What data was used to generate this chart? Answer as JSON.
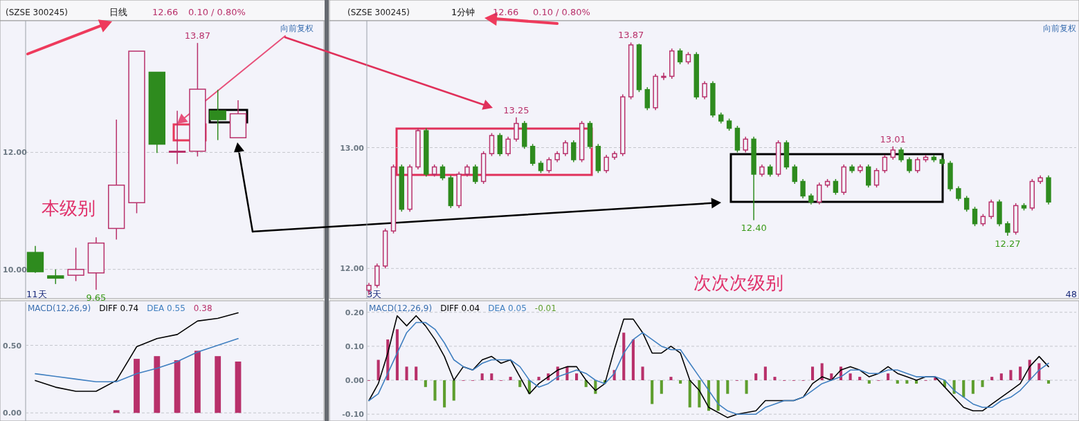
{
  "chart_data": [
    {
      "type": "candlestick",
      "title": "(SZSE 300245)",
      "subtitle": "日线",
      "categories": [
        null,
        null,
        null,
        null,
        null,
        null,
        null,
        null,
        null,
        null,
        null
      ],
      "ohlc": [
        [
          10.29,
          10.4,
          9.94,
          9.96
        ],
        [
          9.89,
          10.0,
          9.75,
          9.85
        ],
        [
          9.9,
          10.37,
          9.8,
          10.0
        ],
        [
          9.94,
          10.55,
          9.65,
          10.45
        ],
        [
          10.7,
          12.56,
          10.51,
          11.44
        ],
        [
          11.14,
          13.73,
          10.96,
          13.73
        ],
        [
          13.37,
          13.37,
          11.99,
          12.14
        ],
        [
          12.01,
          12.71,
          11.8,
          12.02
        ],
        [
          12.02,
          13.87,
          11.93,
          13.08
        ],
        [
          12.71,
          13.07,
          12.21,
          12.56
        ],
        [
          12.25,
          12.89,
          12.25,
          12.66
        ]
      ],
      "ylim": [
        9.5,
        14.25
      ],
      "yticks": [
        {
          "value": 10,
          "label": "10.00"
        },
        {
          "value": 12,
          "label": "12.00"
        }
      ],
      "grid": "y",
      "annotations": [
        "12.66",
        "0.10 / 0.80%",
        "向前复权",
        "11天",
        "本级别",
        {
          "text": "13.87",
          "y": 13.87
        },
        {
          "text": "9.65",
          "y": 9.65
        }
      ]
    },
    {
      "type": "candlestick",
      "title": "(SZSE 300245)",
      "subtitle": "1分钟",
      "categories": [
        null,
        null,
        null,
        null,
        null,
        null,
        null,
        null,
        null,
        null,
        null,
        null,
        null,
        null,
        null,
        null,
        null,
        null,
        null,
        null,
        null,
        null,
        null,
        null,
        null,
        null,
        null,
        null,
        null,
        null,
        null,
        null,
        null,
        null,
        null,
        null,
        null,
        null,
        null,
        null,
        null,
        null,
        null,
        null,
        null,
        null,
        null,
        null,
        null,
        null,
        null,
        null,
        null,
        null,
        null,
        null,
        null,
        null,
        null,
        null,
        null,
        null,
        null,
        null,
        null,
        null,
        null,
        null,
        null,
        null,
        null,
        null,
        null,
        null,
        null,
        null,
        null,
        null,
        null,
        null,
        null,
        null,
        null,
        null
      ],
      "ohlc": [
        [
          11.82,
          11.88,
          11.78,
          11.86
        ],
        [
          11.86,
          12.04,
          11.84,
          12.02
        ],
        [
          12.02,
          12.33,
          12.0,
          12.31
        ],
        [
          12.31,
          12.86,
          12.29,
          12.84
        ],
        [
          12.84,
          12.86,
          12.47,
          12.49
        ],
        [
          12.49,
          12.86,
          12.47,
          12.84
        ],
        [
          12.84,
          13.16,
          12.82,
          13.14
        ],
        [
          13.14,
          13.16,
          12.76,
          12.78
        ],
        [
          12.78,
          12.86,
          12.76,
          12.84
        ],
        [
          12.84,
          12.86,
          12.73,
          12.75
        ],
        [
          12.75,
          12.77,
          12.5,
          12.52
        ],
        [
          12.52,
          12.8,
          12.5,
          12.78
        ],
        [
          12.78,
          12.86,
          12.76,
          12.84
        ],
        [
          12.84,
          12.86,
          12.7,
          12.72
        ],
        [
          12.72,
          12.97,
          12.7,
          12.95
        ],
        [
          12.95,
          13.12,
          12.93,
          13.1
        ],
        [
          13.1,
          13.12,
          12.93,
          12.95
        ],
        [
          12.95,
          13.09,
          12.93,
          13.07
        ],
        [
          13.07,
          13.25,
          13.05,
          13.2
        ],
        [
          13.2,
          13.22,
          12.99,
          13.01
        ],
        [
          13.01,
          13.03,
          12.85,
          12.87
        ],
        [
          12.87,
          12.89,
          12.79,
          12.81
        ],
        [
          12.81,
          12.92,
          12.79,
          12.9
        ],
        [
          12.9,
          12.97,
          12.88,
          12.95
        ],
        [
          12.95,
          13.06,
          12.93,
          13.04
        ],
        [
          13.04,
          13.06,
          12.88,
          12.9
        ],
        [
          12.9,
          13.22,
          12.88,
          13.2
        ],
        [
          13.2,
          13.22,
          12.99,
          13.01
        ],
        [
          13.01,
          13.03,
          12.79,
          12.81
        ],
        [
          12.81,
          12.94,
          12.79,
          12.92
        ],
        [
          12.92,
          12.97,
          12.9,
          12.95
        ],
        [
          12.95,
          13.44,
          12.93,
          13.42
        ],
        [
          13.42,
          13.87,
          13.4,
          13.85
        ],
        [
          13.85,
          13.86,
          13.46,
          13.48
        ],
        [
          13.48,
          13.5,
          13.31,
          13.33
        ],
        [
          13.33,
          13.61,
          13.31,
          13.59
        ],
        [
          13.59,
          13.62,
          13.56,
          13.59
        ],
        [
          13.59,
          13.82,
          13.57,
          13.8
        ],
        [
          13.8,
          13.82,
          13.69,
          13.71
        ],
        [
          13.71,
          13.79,
          13.69,
          13.77
        ],
        [
          13.77,
          13.79,
          13.4,
          13.42
        ],
        [
          13.42,
          13.55,
          13.4,
          13.53
        ],
        [
          13.53,
          13.55,
          13.25,
          13.27
        ],
        [
          13.27,
          13.29,
          13.2,
          13.22
        ],
        [
          13.22,
          13.24,
          13.14,
          13.16
        ],
        [
          13.16,
          13.18,
          12.96,
          12.98
        ],
        [
          12.98,
          13.09,
          12.96,
          13.07
        ],
        [
          13.07,
          13.09,
          12.4,
          12.78
        ],
        [
          12.78,
          12.86,
          12.76,
          12.84
        ],
        [
          12.84,
          12.86,
          12.76,
          12.78
        ],
        [
          12.78,
          13.06,
          12.76,
          13.04
        ],
        [
          13.04,
          13.06,
          12.82,
          12.84
        ],
        [
          12.84,
          12.86,
          12.7,
          12.72
        ],
        [
          12.72,
          12.74,
          12.58,
          12.6
        ],
        [
          12.6,
          12.62,
          12.53,
          12.55
        ],
        [
          12.55,
          12.71,
          12.53,
          12.69
        ],
        [
          12.69,
          12.74,
          12.67,
          12.72
        ],
        [
          12.72,
          12.74,
          12.61,
          12.63
        ],
        [
          12.63,
          12.86,
          12.61,
          12.84
        ],
        [
          12.84,
          12.86,
          12.79,
          12.81
        ],
        [
          12.81,
          12.86,
          12.79,
          12.84
        ],
        [
          12.84,
          12.86,
          12.67,
          12.69
        ],
        [
          12.69,
          12.83,
          12.67,
          12.81
        ],
        [
          12.81,
          12.94,
          12.79,
          12.92
        ],
        [
          12.92,
          13.01,
          12.9,
          12.98
        ],
        [
          12.98,
          13.0,
          12.88,
          12.9
        ],
        [
          12.9,
          12.92,
          12.79,
          12.81
        ],
        [
          12.81,
          12.92,
          12.79,
          12.9
        ],
        [
          12.9,
          12.94,
          12.88,
          12.92
        ],
        [
          12.92,
          12.94,
          12.88,
          12.9
        ],
        [
          12.9,
          12.92,
          12.85,
          12.87
        ],
        [
          12.87,
          12.89,
          12.64,
          12.66
        ],
        [
          12.66,
          12.68,
          12.56,
          12.58
        ],
        [
          12.58,
          12.6,
          12.47,
          12.49
        ],
        [
          12.49,
          12.51,
          12.35,
          12.37
        ],
        [
          12.37,
          12.45,
          12.35,
          12.43
        ],
        [
          12.43,
          12.57,
          12.41,
          12.55
        ],
        [
          12.55,
          12.57,
          12.35,
          12.37
        ],
        [
          12.37,
          12.39,
          12.27,
          12.3
        ],
        [
          12.3,
          12.54,
          12.28,
          12.52
        ],
        [
          12.52,
          12.54,
          12.48,
          12.5
        ],
        [
          12.5,
          12.74,
          12.48,
          12.72
        ],
        [
          12.72,
          12.77,
          12.7,
          12.75
        ],
        [
          12.75,
          12.77,
          12.53,
          12.55
        ]
      ],
      "ylim": [
        11.75,
        14.05
      ],
      "yticks": [
        {
          "value": 12,
          "label": "12.00"
        },
        {
          "value": 13,
          "label": "13.00"
        }
      ],
      "grid": "y",
      "annotations": [
        "12.66",
        "0.10 / 0.80%",
        "向前复权",
        "3天",
        "48",
        "次次次级别",
        {
          "text": "13.87",
          "y": 13.87
        },
        {
          "text": "13.25",
          "y": 13.25
        },
        {
          "text": "12.40",
          "y": 12.4
        },
        {
          "text": "13.01",
          "y": 13.01
        },
        {
          "text": "12.27",
          "y": 12.27
        }
      ]
    },
    {
      "type": "bar",
      "title": "MACD(12,26,9)",
      "categories": [
        null,
        null,
        null,
        null,
        null,
        null,
        null,
        null,
        null,
        null,
        null
      ],
      "series": [
        {
          "name": "DIFF 0.74",
          "type": "line",
          "color": "#000000",
          "values": [
            0.24,
            0.19,
            0.16,
            0.16,
            0.24,
            0.49,
            0.55,
            0.58,
            0.68,
            0.7,
            0.74
          ]
        },
        {
          "name": "DEA 0.55",
          "type": "line",
          "color": "#3f7fc0",
          "values": [
            0.29,
            0.27,
            0.25,
            0.23,
            0.23,
            0.29,
            0.33,
            0.38,
            0.45,
            0.5,
            0.55
          ]
        },
        {
          "name": "0.38",
          "type": "bar",
          "colors": [
            null,
            null,
            null,
            null,
            "#b8306a",
            "#b8306a",
            "#b8306a",
            "#b8306a",
            "#b8306a",
            "#b8306a",
            "#b8306a"
          ],
          "values": [
            null,
            null,
            null,
            null,
            0.02,
            0.4,
            0.42,
            0.39,
            0.46,
            0.42,
            0.38
          ]
        }
      ],
      "ylim": [
        -0.06,
        0.82
      ],
      "yticks": [
        {
          "value": 0,
          "label": "0.00"
        },
        {
          "value": 0.5,
          "label": "0.50"
        }
      ],
      "grid": "y",
      "legend": "top"
    },
    {
      "type": "bar",
      "title": "MACD(12,26,9)",
      "categories": [
        null,
        null,
        null,
        null,
        null,
        null,
        null,
        null,
        null,
        null,
        null,
        null,
        null,
        null,
        null,
        null,
        null,
        null,
        null,
        null,
        null,
        null,
        null,
        null,
        null,
        null,
        null,
        null,
        null,
        null,
        null,
        null,
        null,
        null,
        null,
        null,
        null,
        null,
        null,
        null,
        null,
        null,
        null,
        null,
        null,
        null,
        null,
        null,
        null,
        null,
        null,
        null,
        null,
        null,
        null,
        null,
        null,
        null,
        null,
        null,
        null,
        null,
        null,
        null,
        null,
        null,
        null,
        null,
        null,
        null,
        null,
        null,
        null
      ],
      "series": [
        {
          "name": "DIFF 0.04",
          "type": "line",
          "color": "#000000",
          "values": [
            -0.06,
            -0.01,
            0.08,
            0.19,
            0.16,
            0.19,
            0.16,
            0.12,
            0.07,
            0.0,
            0.04,
            0.03,
            0.06,
            0.07,
            0.05,
            0.06,
            0.01,
            -0.04,
            -0.01,
            0.01,
            0.03,
            0.04,
            0.04,
            0.0,
            -0.03,
            -0.01,
            0.09,
            0.18,
            0.18,
            0.14,
            0.08,
            0.08,
            0.1,
            0.08,
            0.0,
            -0.03,
            -0.08,
            null,
            -0.11,
            -0.1,
            null,
            -0.09,
            -0.06,
            -0.06,
            -0.06,
            -0.06,
            -0.05,
            -0.01,
            0.01,
            0.0,
            0.03,
            0.04,
            0.03,
            0.01,
            0.02,
            0.04,
            0.02,
            0.01,
            0.0,
            0.01,
            0.01,
            -0.02,
            -0.05,
            -0.08,
            -0.09,
            -0.09,
            -0.07,
            -0.05,
            -0.03,
            -0.01,
            0.04,
            0.07,
            0.04
          ]
        },
        {
          "name": "DEA 0.05",
          "type": "line",
          "color": "#3f7fc0",
          "values": [
            -0.06,
            -0.04,
            0.02,
            0.08,
            0.14,
            0.17,
            0.17,
            0.15,
            0.11,
            0.06,
            0.04,
            0.03,
            0.05,
            0.06,
            0.06,
            0.06,
            0.04,
            0.0,
            -0.02,
            -0.01,
            0.01,
            0.02,
            0.03,
            0.02,
            0.0,
            -0.01,
            0.02,
            0.08,
            0.12,
            0.14,
            0.12,
            0.1,
            0.09,
            0.09,
            0.05,
            0.01,
            -0.03,
            -0.07,
            -0.09,
            -0.1,
            -0.1,
            -0.1,
            -0.08,
            -0.07,
            -0.06,
            -0.06,
            -0.05,
            -0.03,
            -0.01,
            0.0,
            0.01,
            0.03,
            0.03,
            0.02,
            0.02,
            0.03,
            0.03,
            0.02,
            0.01,
            0.01,
            0.01,
            0.0,
            -0.03,
            -0.05,
            -0.07,
            -0.08,
            -0.08,
            -0.06,
            -0.05,
            -0.03,
            0.0,
            0.03,
            0.05
          ]
        },
        {
          "name": "-0.01",
          "type": "bar",
          "colors": [
            "#b8306a",
            "#b8306a",
            "#b8306a",
            "#b8306a",
            "#b8306a",
            "#b8306a",
            "#5e9e2e",
            "#5e9e2e",
            "#5e9e2e",
            "#5e9e2e",
            "#b8306a",
            "#b8306a",
            "#b8306a",
            "#b8306a",
            "#b8306a",
            "#b8306a",
            "#5e9e2e",
            "#5e9e2e",
            "#b8306a",
            "#b8306a",
            "#b8306a",
            "#b8306a",
            "#b8306a",
            "#5e9e2e",
            "#5e9e2e",
            "#5e9e2e",
            "#b8306a",
            "#b8306a",
            "#b8306a",
            "#b8306a",
            "#5e9e2e",
            "#5e9e2e",
            "#b8306a",
            "#5e9e2e",
            "#5e9e2e",
            "#5e9e2e",
            "#5e9e2e",
            "#5e9e2e",
            "#5e9e2e",
            "#b8306a",
            "#5e9e2e",
            "#b8306a",
            "#b8306a",
            "#b8306a",
            "#b8306a",
            "#b8306a",
            "#b8306a",
            "#b8306a",
            "#b8306a",
            "#b8306a",
            "#b8306a",
            "#b8306a",
            "#b8306a",
            "#5e9e2e",
            "#b8306a",
            "#b8306a",
            "#5e9e2e",
            "#5e9e2e",
            "#5e9e2e",
            "#b8306a",
            "#b8306a",
            "#5e9e2e",
            "#5e9e2e",
            "#5e9e2e",
            "#5e9e2e",
            "#5e9e2e",
            "#b8306a",
            "#b8306a",
            "#b8306a",
            "#b8306a",
            "#b8306a",
            "#b8306a",
            "#5e9e2e"
          ],
          "values": [
            0.0,
            0.06,
            0.12,
            0.15,
            0.04,
            0.04,
            -0.02,
            -0.06,
            -0.08,
            -0.06,
            0.0,
            0.0,
            0.02,
            0.02,
            0.0,
            0.01,
            -0.02,
            -0.04,
            0.01,
            0.02,
            0.04,
            0.04,
            0.02,
            -0.02,
            -0.04,
            -0.01,
            0.03,
            0.14,
            0.12,
            0.04,
            -0.07,
            -0.04,
            0.01,
            -0.01,
            -0.08,
            -0.08,
            -0.09,
            -0.09,
            -0.04,
            0.0,
            -0.04,
            0.02,
            0.04,
            0.01,
            0.0,
            0.0,
            0.0,
            0.04,
            0.05,
            0.02,
            0.04,
            0.02,
            0.01,
            -0.01,
            0.0,
            0.02,
            -0.01,
            -0.01,
            -0.01,
            0.0,
            0.01,
            -0.02,
            -0.04,
            -0.05,
            -0.04,
            -0.02,
            0.01,
            0.02,
            0.03,
            0.04,
            0.06,
            0.05,
            -0.01
          ]
        }
      ],
      "ylim": [
        -0.12,
        0.23
      ],
      "yticks": [
        {
          "value": -0.1,
          "label": "-0.10"
        },
        {
          "value": 0,
          "label": "0.00"
        },
        {
          "value": 0.1,
          "label": "0.10"
        },
        {
          "value": 0.2,
          "label": "0.20"
        }
      ],
      "grid": "y",
      "legend": "top left"
    }
  ]
}
